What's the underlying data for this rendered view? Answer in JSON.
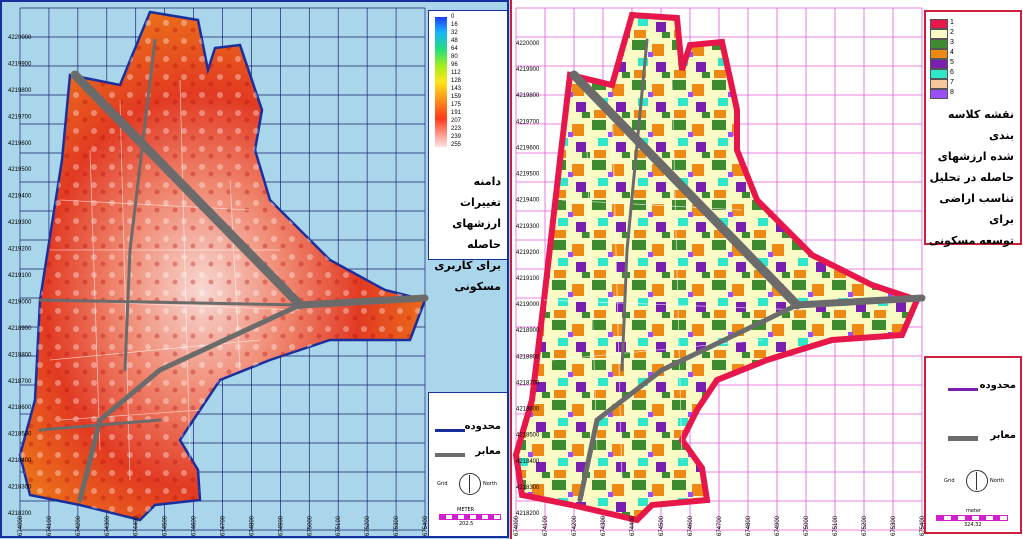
{
  "left_map": {
    "colorbar_ticks": [
      "0",
      "16",
      "32",
      "48",
      "64",
      "80",
      "96",
      "112",
      "128",
      "143",
      "159",
      "175",
      "191",
      "207",
      "223",
      "239",
      "255"
    ],
    "title_lines": [
      "دامنه تغییرات",
      "ارزشهای حاصله",
      "برای کاربری",
      "مسکونی"
    ],
    "legend": {
      "boundary": "محدوده",
      "roads": "معابر"
    },
    "north_arrow": {
      "grid": "Grid",
      "north": "North"
    },
    "scale_bar": {
      "unit": "METER",
      "value": "202.5"
    },
    "y_labels": [
      "4220000",
      "4219900",
      "4219800",
      "4219700",
      "4219600",
      "4219500",
      "4219400",
      "4219300",
      "4219200",
      "4219100",
      "4219000",
      "4218900",
      "4218800",
      "4218700",
      "4218600",
      "4218500",
      "4218400",
      "4218300",
      "4218200"
    ],
    "x_labels": [
      "674000",
      "674100",
      "674200",
      "674300",
      "674400",
      "674500",
      "674600",
      "674700",
      "674800",
      "674900",
      "675000",
      "675100",
      "675200",
      "675300",
      "675400"
    ]
  },
  "right_map": {
    "classes": [
      {
        "label": "1",
        "color": "#e8174b"
      },
      {
        "label": "2",
        "color": "#fafbc4"
      },
      {
        "label": "3",
        "color": "#3e8a2e"
      },
      {
        "label": "4",
        "color": "#ee8a14"
      },
      {
        "label": "5",
        "color": "#7a1fb0"
      },
      {
        "label": "6",
        "color": "#2ee8c9"
      },
      {
        "label": "7",
        "color": "#f6c89a"
      },
      {
        "label": "8",
        "color": "#9b4dff"
      }
    ],
    "title_lines": [
      "نقشه کلاسه بندی",
      "شده  ارزشهای",
      "حاصله در تحلیل",
      "تناسب اراضی برای",
      "توسعه مسکونی"
    ],
    "legend": {
      "boundary": "محدوده",
      "roads": "معابر"
    },
    "north_arrow": {
      "grid": "Grid",
      "north": "North"
    },
    "scale_bar": {
      "unit": "meter",
      "value": "324.32"
    },
    "y_labels": [
      "4220000",
      "4219900",
      "4219800",
      "4219700",
      "4219600",
      "4219500",
      "4219400",
      "4219300",
      "4219200",
      "4219100",
      "4219000",
      "4218900",
      "4218800",
      "4218700",
      "4218600",
      "4218500",
      "4218400",
      "4218300",
      "4218200"
    ],
    "x_labels": [
      "674000",
      "674100",
      "674200",
      "674300",
      "674400",
      "674500",
      "674600",
      "674700",
      "674800",
      "674900",
      "675000",
      "675100",
      "675200",
      "675300",
      "675400"
    ]
  },
  "colors": {
    "left_bg": "#a9d6ea",
    "left_frame": "#1a2f9e",
    "right_frame": "#cc1f3a",
    "road": "#6b6b6b",
    "grid_right": "#e15ad8"
  }
}
